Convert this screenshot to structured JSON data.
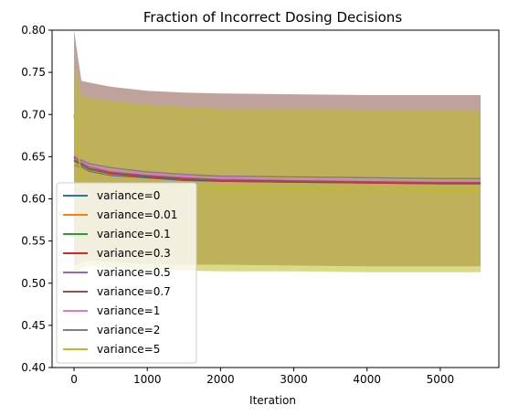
{
  "chart_data": {
    "type": "line",
    "title": "Fraction of Incorrect Dosing Decisions",
    "xlabel": "Iteration",
    "ylabel": "",
    "xlim": [
      -300,
      5800
    ],
    "ylim": [
      0.4,
      0.8
    ],
    "xticks": [
      0,
      1000,
      2000,
      3000,
      4000,
      5000
    ],
    "yticks": [
      0.4,
      0.45,
      0.5,
      0.55,
      0.6,
      0.65,
      0.7,
      0.75,
      0.8
    ],
    "ytick_labels": [
      "0.40",
      "0.45",
      "0.50",
      "0.55",
      "0.60",
      "0.65",
      "0.70",
      "0.75",
      "0.80"
    ],
    "grid": false,
    "legend_position": "lower-left",
    "x": [
      0,
      100,
      200,
      500,
      1000,
      1500,
      2000,
      3000,
      4000,
      5000,
      5550
    ],
    "bands": [
      {
        "color": "#8c564b",
        "lower": [
          0.52,
          0.525,
          0.527,
          0.525,
          0.523,
          0.522,
          0.522,
          0.521,
          0.52,
          0.52,
          0.52
        ],
        "upper": [
          0.8,
          0.74,
          0.738,
          0.733,
          0.728,
          0.726,
          0.725,
          0.724,
          0.723,
          0.723,
          0.723
        ]
      },
      {
        "color": "#bcbd22",
        "lower": [
          0.51,
          0.518,
          0.52,
          0.518,
          0.516,
          0.515,
          0.514,
          0.514,
          0.513,
          0.513,
          0.513
        ],
        "upper": [
          0.76,
          0.722,
          0.72,
          0.716,
          0.712,
          0.709,
          0.707,
          0.706,
          0.705,
          0.705,
          0.705
        ]
      }
    ],
    "series": [
      {
        "name": "variance=0",
        "color": "#1f77b4",
        "values": [
          0.64,
          0.638,
          0.633,
          0.628,
          0.625,
          0.622,
          0.621,
          0.62,
          0.619,
          0.618,
          0.618
        ]
      },
      {
        "name": "variance=0.01",
        "color": "#ff7f0e",
        "values": [
          0.64,
          0.639,
          0.634,
          0.629,
          0.626,
          0.623,
          0.622,
          0.621,
          0.62,
          0.619,
          0.619
        ]
      },
      {
        "name": "variance=0.1",
        "color": "#2ca02c",
        "values": [
          0.645,
          0.64,
          0.635,
          0.63,
          0.626,
          0.624,
          0.622,
          0.621,
          0.62,
          0.619,
          0.619
        ]
      },
      {
        "name": "variance=0.3",
        "color": "#d62728",
        "values": [
          0.65,
          0.642,
          0.636,
          0.63,
          0.626,
          0.623,
          0.621,
          0.62,
          0.619,
          0.618,
          0.618
        ]
      },
      {
        "name": "variance=0.5",
        "color": "#9467bd",
        "values": [
          0.648,
          0.643,
          0.638,
          0.632,
          0.628,
          0.625,
          0.623,
          0.622,
          0.621,
          0.62,
          0.62
        ]
      },
      {
        "name": "variance=0.7",
        "color": "#8c564b",
        "values": [
          0.646,
          0.641,
          0.636,
          0.631,
          0.627,
          0.624,
          0.622,
          0.621,
          0.62,
          0.619,
          0.619
        ]
      },
      {
        "name": "variance=1",
        "color": "#e377c2",
        "values": [
          0.652,
          0.645,
          0.64,
          0.634,
          0.63,
          0.627,
          0.625,
          0.623,
          0.622,
          0.621,
          0.621
        ]
      },
      {
        "name": "variance=2",
        "color": "#7f7f7f",
        "values": [
          0.648,
          0.646,
          0.642,
          0.637,
          0.632,
          0.629,
          0.627,
          0.626,
          0.625,
          0.624,
          0.624
        ]
      },
      {
        "name": "variance=5",
        "color": "#bcbd22",
        "values": [
          0.7,
          0.625,
          0.618,
          0.616,
          0.614,
          0.613,
          0.612,
          0.612,
          0.611,
          0.61,
          0.61
        ]
      }
    ]
  }
}
